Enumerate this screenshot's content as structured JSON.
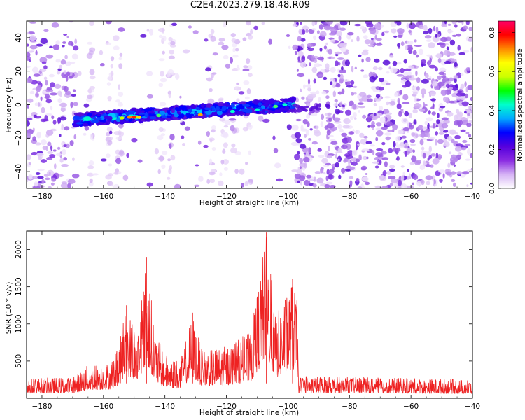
{
  "title": "C2E4.2023.279.18.48.R09",
  "chart_data": [
    {
      "type": "heatmap",
      "xlabel": "Height of straight line (km)",
      "ylabel": "Frequency (Hz)",
      "xlim": [
        -185,
        -40
      ],
      "ylim": [
        -50,
        50
      ],
      "xticks": [
        -180,
        -160,
        -140,
        -120,
        -100,
        -80,
        -60,
        -40
      ],
      "yticks": [
        -40,
        -20,
        0,
        20,
        40
      ],
      "colorbar": {
        "label": "Normalized spectral amplitude",
        "range": [
          0.0,
          0.86
        ],
        "ticks": [
          "0.0",
          "0.2",
          "0.4",
          "0.6",
          "0.8"
        ],
        "colormap": [
          "#ffffff",
          "#d6b3f5",
          "#8a2be2",
          "#5500dd",
          "#0000ff",
          "#00aaff",
          "#00ffcc",
          "#00ff00",
          "#ccff00",
          "#ffff00",
          "#ff8800",
          "#ff0000",
          "#ff0066"
        ]
      },
      "signal_band": {
        "x_range": [
          -169,
          -98
        ],
        "frequency_start": -9,
        "frequency_end": 0,
        "peak_x": -150,
        "peak_frequency": -7.5
      }
    },
    {
      "type": "line",
      "xlabel": "Height of straight line (km)",
      "ylabel": "SNR (10 * v/v)",
      "xlim": [
        -185,
        -40
      ],
      "ylim": [
        0,
        2250
      ],
      "xticks": [
        -180,
        -160,
        -140,
        -120,
        -100,
        -80,
        -60,
        -40
      ],
      "yticks": [
        500,
        1000,
        1500,
        2000
      ],
      "color": "#ee2222",
      "series": [
        {
          "peaks": [
            {
              "x": -152.5,
              "y": 1250
            },
            {
              "x": -146,
              "y": 1900
            },
            {
              "x": -131,
              "y": 1150
            },
            {
              "x": -107,
              "y": 2230
            },
            {
              "x": -98.5,
              "y": 1600
            }
          ],
          "envelope": [
            {
              "x": -185,
              "y": 270
            },
            {
              "x": -170,
              "y": 280
            },
            {
              "x": -165,
              "y": 450
            },
            {
              "x": -158,
              "y": 480
            },
            {
              "x": -155,
              "y": 700
            },
            {
              "x": -152.5,
              "y": 1250
            },
            {
              "x": -149,
              "y": 900
            },
            {
              "x": -146,
              "y": 1900
            },
            {
              "x": -143,
              "y": 850
            },
            {
              "x": -140,
              "y": 600
            },
            {
              "x": -135,
              "y": 500
            },
            {
              "x": -131,
              "y": 1150
            },
            {
              "x": -128,
              "y": 650
            },
            {
              "x": -120,
              "y": 700
            },
            {
              "x": -112,
              "y": 900
            },
            {
              "x": -107,
              "y": 2230
            },
            {
              "x": -104,
              "y": 1100
            },
            {
              "x": -98.5,
              "y": 1600
            },
            {
              "x": -97,
              "y": 1300
            },
            {
              "x": -96.5,
              "y": 300
            },
            {
              "x": -40,
              "y": 250
            }
          ]
        }
      ]
    }
  ]
}
